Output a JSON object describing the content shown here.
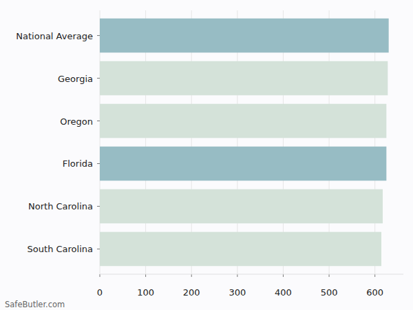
{
  "chart_data": {
    "type": "bar",
    "orientation": "horizontal",
    "categories": [
      "National Average",
      "Georgia",
      "Oregon",
      "Florida",
      "North Carolina",
      "South Carolina"
    ],
    "values": [
      630,
      628,
      625,
      625,
      617,
      614
    ],
    "colors": [
      "#97bcc4",
      "#d4e2d9",
      "#d4e2d9",
      "#97bcc4",
      "#d4e2d9",
      "#d4e2d9"
    ],
    "xlim": [
      0,
      662
    ],
    "xticks": [
      0,
      100,
      200,
      300,
      400,
      500,
      600
    ],
    "grid": true,
    "source": "SafeButler.com"
  }
}
